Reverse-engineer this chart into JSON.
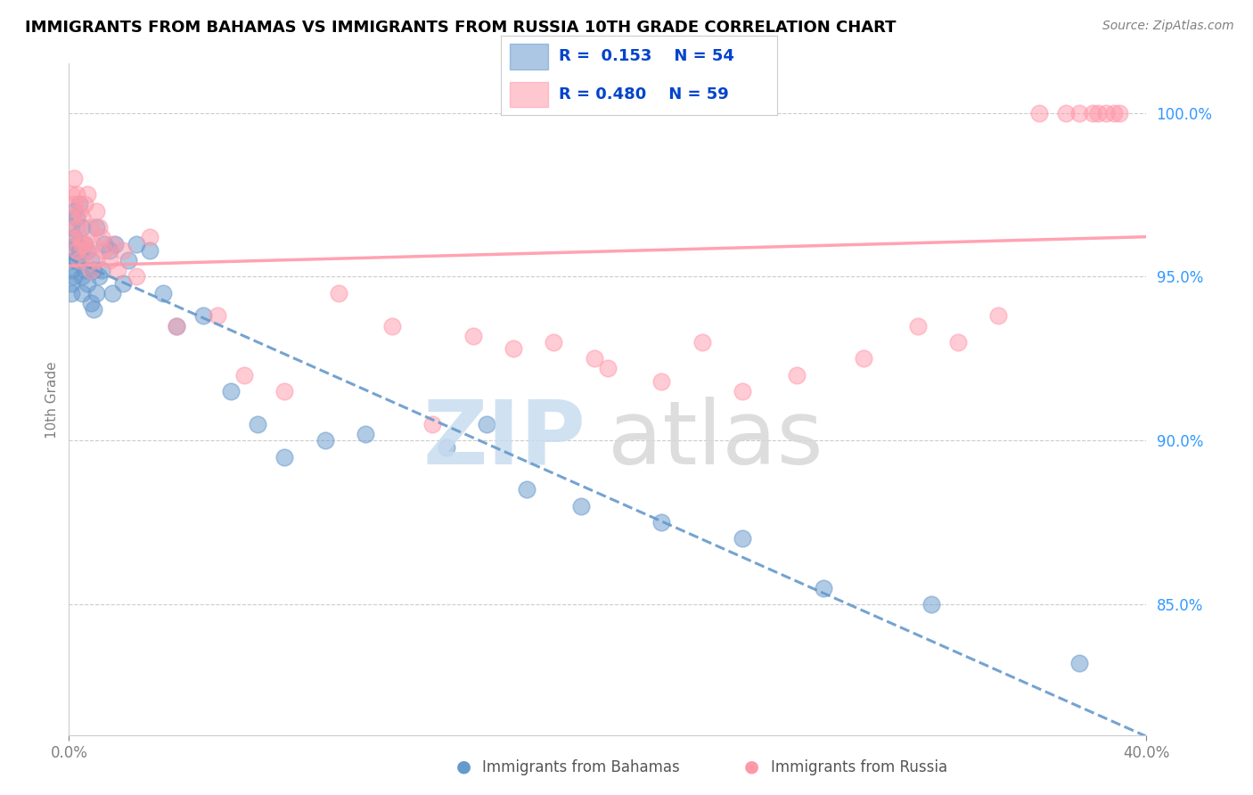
{
  "title": "IMMIGRANTS FROM BAHAMAS VS IMMIGRANTS FROM RUSSIA 10TH GRADE CORRELATION CHART",
  "source": "Source: ZipAtlas.com",
  "ylabel": "10th Grade",
  "color_blue": "#6699CC",
  "color_pink": "#FF99AA",
  "x_min": 0.0,
  "x_max": 40.0,
  "y_min": 81.0,
  "y_max": 101.5,
  "yticks": [
    100,
    95,
    90,
    85
  ],
  "ytick_labels": [
    "100.0%",
    "95.0%",
    "90.0%",
    "85.0%"
  ],
  "legend_blue_r": "R =  0.153",
  "legend_blue_n": "N = 54",
  "legend_pink_r": "R = 0.480",
  "legend_pink_n": "N = 59",
  "blue_x": [
    0.1,
    0.1,
    0.1,
    0.1,
    0.1,
    0.2,
    0.2,
    0.2,
    0.2,
    0.3,
    0.3,
    0.3,
    0.4,
    0.4,
    0.5,
    0.5,
    0.5,
    0.6,
    0.6,
    0.7,
    0.7,
    0.8,
    0.8,
    0.9,
    0.9,
    1.0,
    1.0,
    1.1,
    1.2,
    1.3,
    1.5,
    1.6,
    1.7,
    2.0,
    2.2,
    2.5,
    3.0,
    3.5,
    4.0,
    5.0,
    6.0,
    7.0,
    8.0,
    9.5,
    11.0,
    14.0,
    15.5,
    17.0,
    19.0,
    22.0,
    25.0,
    28.0,
    32.0,
    37.5
  ],
  "blue_y": [
    96.5,
    95.8,
    95.2,
    94.8,
    94.5,
    97.0,
    96.2,
    95.5,
    95.0,
    96.8,
    96.0,
    95.5,
    97.2,
    95.8,
    96.5,
    95.0,
    94.5,
    96.0,
    95.2,
    95.8,
    94.8,
    95.5,
    94.2,
    95.2,
    94.0,
    96.5,
    94.5,
    95.0,
    95.2,
    96.0,
    95.8,
    94.5,
    96.0,
    94.8,
    95.5,
    96.0,
    95.8,
    94.5,
    93.5,
    93.8,
    91.5,
    90.5,
    89.5,
    90.0,
    90.2,
    89.8,
    90.5,
    88.5,
    88.0,
    87.5,
    87.0,
    85.5,
    85.0,
    83.2
  ],
  "pink_x": [
    0.1,
    0.1,
    0.1,
    0.2,
    0.2,
    0.3,
    0.3,
    0.3,
    0.4,
    0.4,
    0.4,
    0.5,
    0.5,
    0.6,
    0.6,
    0.7,
    0.7,
    0.8,
    0.8,
    0.9,
    1.0,
    1.0,
    1.1,
    1.2,
    1.3,
    1.5,
    1.6,
    1.8,
    2.0,
    2.5,
    3.0,
    4.0,
    5.5,
    6.5,
    8.0,
    10.0,
    12.0,
    13.5,
    15.0,
    16.5,
    18.0,
    19.5,
    20.0,
    22.0,
    23.5,
    25.0,
    27.0,
    29.5,
    31.5,
    33.0,
    34.5,
    36.0,
    37.0,
    37.5,
    38.0,
    38.2,
    38.5,
    38.8,
    39.0
  ],
  "pink_y": [
    97.5,
    96.8,
    96.2,
    98.0,
    97.2,
    97.5,
    96.5,
    95.8,
    97.0,
    96.2,
    95.5,
    96.8,
    96.0,
    97.2,
    96.0,
    97.5,
    95.8,
    96.5,
    95.2,
    96.0,
    97.0,
    95.5,
    96.5,
    96.2,
    95.8,
    95.5,
    96.0,
    95.2,
    95.8,
    95.0,
    96.2,
    93.5,
    93.8,
    92.0,
    91.5,
    94.5,
    93.5,
    90.5,
    93.2,
    92.8,
    93.0,
    92.5,
    92.2,
    91.8,
    93.0,
    91.5,
    92.0,
    92.5,
    93.5,
    93.0,
    93.8,
    100.0,
    100.0,
    100.0,
    100.0,
    100.0,
    100.0,
    100.0,
    100.0
  ]
}
